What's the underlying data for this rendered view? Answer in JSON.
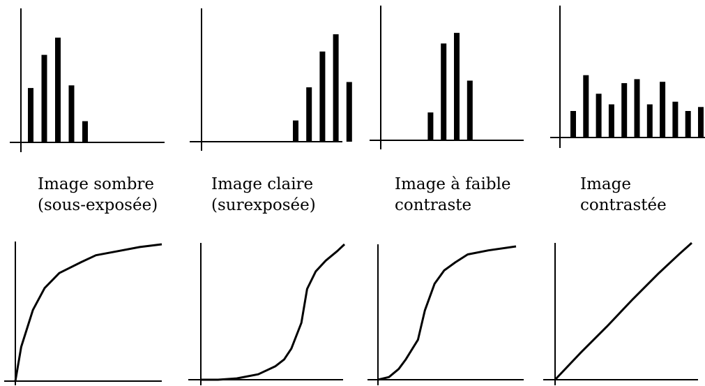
{
  "figure": {
    "panels": [
      {
        "caption_line1": "Image sombre",
        "caption_line2": "(sous-exposée)",
        "histogram": [
          0.41,
          0.66,
          0.79,
          0.43,
          0.16,
          0,
          0,
          0,
          0,
          0
        ],
        "curve": [
          [
            0,
            0
          ],
          [
            0.04,
            0.25
          ],
          [
            0.12,
            0.52
          ],
          [
            0.2,
            0.68
          ],
          [
            0.3,
            0.79
          ],
          [
            0.45,
            0.87
          ],
          [
            0.55,
            0.92
          ],
          [
            0.7,
            0.95
          ],
          [
            0.85,
            0.98
          ],
          [
            1,
            1
          ]
        ]
      },
      {
        "caption_line1": "Image claire",
        "caption_line2": "(surexposée)",
        "histogram": [
          0,
          0,
          0,
          0,
          0,
          0.16,
          0.41,
          0.68,
          0.81,
          0.45
        ],
        "curve": [
          [
            0,
            0
          ],
          [
            0.12,
            0
          ],
          [
            0.25,
            0.01
          ],
          [
            0.4,
            0.04
          ],
          [
            0.52,
            0.1
          ],
          [
            0.58,
            0.15
          ],
          [
            0.63,
            0.23
          ],
          [
            0.7,
            0.42
          ],
          [
            0.74,
            0.67
          ],
          [
            0.8,
            0.8
          ],
          [
            0.87,
            0.88
          ],
          [
            0.95,
            0.95
          ],
          [
            1,
            1
          ]
        ]
      },
      {
        "caption_line1": "Image à faible",
        "caption_line2": "contraste",
        "histogram": [
          0,
          0,
          0,
          0.21,
          0.73,
          0.81,
          0.45,
          0,
          0,
          0
        ],
        "curve": [
          [
            0,
            0
          ],
          [
            0.08,
            0.02
          ],
          [
            0.15,
            0.08
          ],
          [
            0.2,
            0.15
          ],
          [
            0.29,
            0.3
          ],
          [
            0.34,
            0.52
          ],
          [
            0.41,
            0.72
          ],
          [
            0.48,
            0.82
          ],
          [
            0.56,
            0.88
          ],
          [
            0.65,
            0.94
          ],
          [
            0.8,
            0.97
          ],
          [
            1,
            1
          ]
        ]
      },
      {
        "caption_line1": "Image",
        "caption_line2": "contrastée",
        "histogram": [
          0.2,
          0.47,
          0.33,
          0.25,
          0.41,
          0.44,
          0.25,
          0.42,
          0.27,
          0.2,
          0.23
        ],
        "curve": [
          [
            0,
            0
          ],
          [
            0.19,
            0.2
          ],
          [
            0.38,
            0.39
          ],
          [
            0.57,
            0.59
          ],
          [
            0.76,
            0.78
          ],
          [
            0.91,
            0.92
          ],
          [
            1,
            1
          ]
        ]
      }
    ]
  }
}
